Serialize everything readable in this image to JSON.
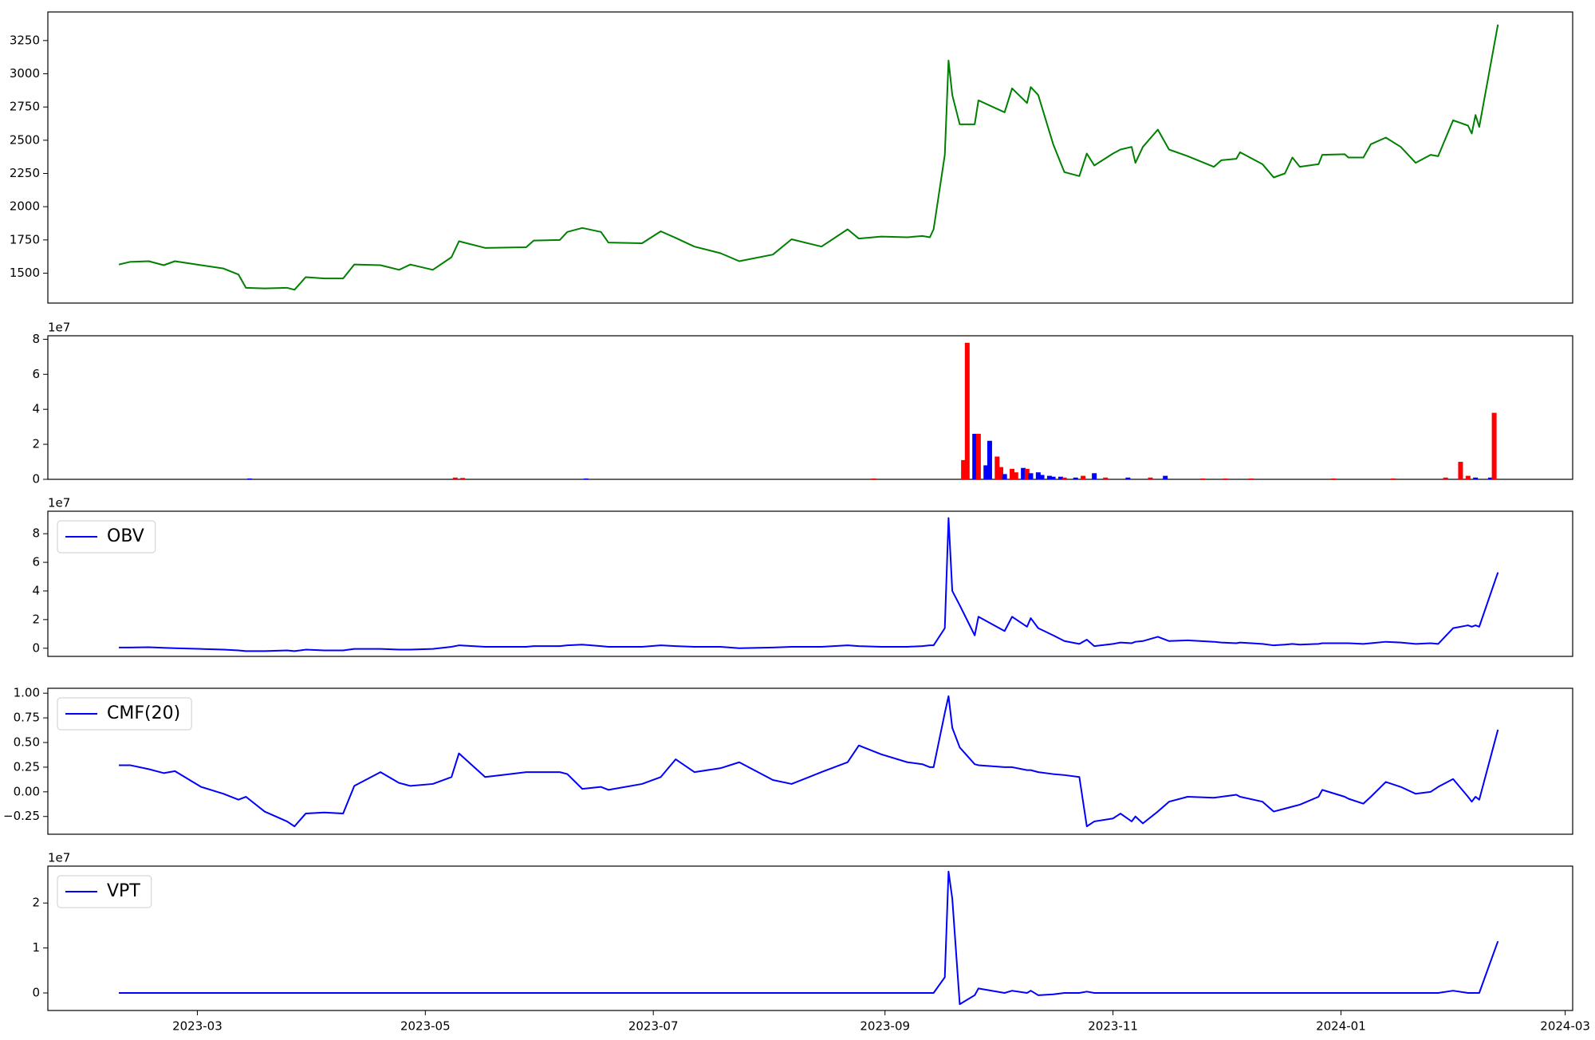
{
  "chart_data": [
    {
      "type": "line",
      "color": "green",
      "x": [
        "2023-02-08",
        "2023-02-11",
        "2023-02-16",
        "2023-02-20",
        "2023-02-23",
        "2023-03-02",
        "2023-03-08",
        "2023-03-12",
        "2023-03-14",
        "2023-03-19",
        "2023-03-25",
        "2023-03-27",
        "2023-03-30",
        "2023-04-04",
        "2023-04-09",
        "2023-04-12",
        "2023-04-19",
        "2023-04-24",
        "2023-04-27",
        "2023-05-03",
        "2023-05-08",
        "2023-05-10",
        "2023-05-17",
        "2023-05-28",
        "2023-05-30",
        "2023-06-06",
        "2023-06-08",
        "2023-06-12",
        "2023-06-17",
        "2023-06-19",
        "2023-06-28",
        "2023-07-03",
        "2023-07-07",
        "2023-07-12",
        "2023-07-19",
        "2023-07-24",
        "2023-08-02",
        "2023-08-07",
        "2023-08-15",
        "2023-08-22",
        "2023-08-25",
        "2023-08-31",
        "2023-09-07",
        "2023-09-11",
        "2023-09-13",
        "2023-09-14",
        "2023-09-17",
        "2023-09-18",
        "2023-09-19",
        "2023-09-21",
        "2023-09-25",
        "2023-09-26",
        "2023-10-03",
        "2023-10-05",
        "2023-10-09",
        "2023-10-10",
        "2023-10-12",
        "2023-10-16",
        "2023-10-19",
        "2023-10-23",
        "2023-10-25",
        "2023-10-27",
        "2023-11-01",
        "2023-11-03",
        "2023-11-06",
        "2023-11-07",
        "2023-11-09",
        "2023-11-13",
        "2023-11-16",
        "2023-11-21",
        "2023-11-28",
        "2023-11-30",
        "2023-12-04",
        "2023-12-05",
        "2023-12-11",
        "2023-12-14",
        "2023-12-17",
        "2023-12-19",
        "2023-12-21",
        "2023-12-26",
        "2023-12-27",
        "2024-01-02",
        "2024-01-03",
        "2024-01-07",
        "2024-01-09",
        "2024-01-13",
        "2024-01-17",
        "2024-01-21",
        "2024-01-25",
        "2024-01-27",
        "2024-01-31",
        "2024-02-04",
        "2024-02-05",
        "2024-02-06",
        "2024-02-07",
        "2024-02-12"
      ],
      "values": [
        1565,
        1585,
        1590,
        1560,
        1590,
        1560,
        1535,
        1490,
        1390,
        1385,
        1390,
        1375,
        1470,
        1460,
        1460,
        1565,
        1560,
        1525,
        1565,
        1525,
        1620,
        1740,
        1690,
        1695,
        1745,
        1750,
        1810,
        1840,
        1810,
        1730,
        1725,
        1815,
        1765,
        1700,
        1650,
        1590,
        1640,
        1755,
        1700,
        1830,
        1760,
        1775,
        1770,
        1780,
        1770,
        1830,
        2390,
        3100,
        2840,
        2620,
        2620,
        2800,
        2710,
        2890,
        2780,
        2900,
        2840,
        2470,
        2260,
        2230,
        2400,
        2310,
        2400,
        2430,
        2450,
        2330,
        2450,
        2580,
        2430,
        2380,
        2300,
        2350,
        2360,
        2410,
        2320,
        2220,
        2250,
        2370,
        2300,
        2320,
        2390,
        2395,
        2370,
        2370,
        2470,
        2520,
        2450,
        2330,
        2390,
        2380,
        2650,
        2610,
        2550,
        2690,
        2600,
        3370
      ],
      "xlim": [
        "2023-01-20",
        "2024-03-03"
      ],
      "ylim": [
        1275,
        3465
      ],
      "yticks": [
        1500,
        1750,
        2000,
        2250,
        2500,
        2750,
        3000,
        3250
      ]
    },
    {
      "type": "bar",
      "offset_label": "1e7",
      "x": [
        "2023-03-15",
        "2023-05-09",
        "2023-05-11",
        "2023-06-13",
        "2023-08-29",
        "2023-09-22",
        "2023-09-23",
        "2023-09-25",
        "2023-09-26",
        "2023-09-28",
        "2023-09-29",
        "2023-10-01",
        "2023-10-02",
        "2023-10-03",
        "2023-10-05",
        "2023-10-06",
        "2023-10-08",
        "2023-10-09",
        "2023-10-10",
        "2023-10-12",
        "2023-10-13",
        "2023-10-15",
        "2023-10-16",
        "2023-10-18",
        "2023-10-19",
        "2023-10-22",
        "2023-10-24",
        "2023-10-27",
        "2023-10-30",
        "2023-11-05",
        "2023-11-11",
        "2023-11-15",
        "2023-11-25",
        "2023-12-01",
        "2023-12-08",
        "2023-12-30",
        "2024-01-15",
        "2024-01-29",
        "2024-02-02",
        "2024-02-04",
        "2024-02-06",
        "2024-02-10",
        "2024-02-11"
      ],
      "values": [
        0.05,
        0.1,
        0.08,
        0.05,
        0.05,
        1.1,
        7.8,
        2.6,
        2.6,
        0.8,
        2.2,
        1.3,
        0.7,
        0.3,
        0.6,
        0.4,
        0.65,
        0.6,
        0.35,
        0.4,
        0.25,
        0.2,
        0.15,
        0.15,
        0.1,
        0.1,
        0.2,
        0.35,
        0.1,
        0.1,
        0.1,
        0.2,
        0.05,
        0.05,
        0.05,
        0.05,
        0.05,
        0.1,
        1.0,
        0.2,
        0.1,
        0.1,
        3.8
      ],
      "colors": [
        "blue",
        "red",
        "red",
        "blue",
        "red",
        "red",
        "red",
        "blue",
        "red",
        "blue",
        "blue",
        "red",
        "red",
        "blue",
        "red",
        "red",
        "blue",
        "red",
        "blue",
        "blue",
        "blue",
        "blue",
        "blue",
        "blue",
        "red",
        "blue",
        "red",
        "blue",
        "red",
        "blue",
        "red",
        "blue",
        "red",
        "red",
        "red",
        "red",
        "red",
        "red",
        "red",
        "red",
        "blue",
        "blue",
        "red"
      ],
      "xlim": [
        "2023-01-20",
        "2024-03-03"
      ],
      "ylim": [
        0,
        8.2
      ],
      "yticks": [
        0,
        2,
        4,
        6,
        8
      ]
    },
    {
      "type": "line",
      "offset_label": "1e7",
      "legend": "upper left",
      "x": [
        "2023-02-08",
        "2023-02-11",
        "2023-02-16",
        "2023-02-20",
        "2023-02-23",
        "2023-03-02",
        "2023-03-08",
        "2023-03-12",
        "2023-03-14",
        "2023-03-19",
        "2023-03-25",
        "2023-03-27",
        "2023-03-30",
        "2023-04-04",
        "2023-04-09",
        "2023-04-12",
        "2023-04-19",
        "2023-04-24",
        "2023-04-27",
        "2023-05-03",
        "2023-05-08",
        "2023-05-10",
        "2023-05-17",
        "2023-05-28",
        "2023-05-30",
        "2023-06-06",
        "2023-06-08",
        "2023-06-12",
        "2023-06-17",
        "2023-06-19",
        "2023-06-28",
        "2023-07-03",
        "2023-07-07",
        "2023-07-12",
        "2023-07-19",
        "2023-07-24",
        "2023-08-02",
        "2023-08-07",
        "2023-08-15",
        "2023-08-22",
        "2023-08-25",
        "2023-08-31",
        "2023-09-07",
        "2023-09-11",
        "2023-09-13",
        "2023-09-14",
        "2023-09-17",
        "2023-09-18",
        "2023-09-19",
        "2023-09-21",
        "2023-09-25",
        "2023-09-26",
        "2023-10-03",
        "2023-10-05",
        "2023-10-09",
        "2023-10-10",
        "2023-10-12",
        "2023-10-16",
        "2023-10-19",
        "2023-10-23",
        "2023-10-25",
        "2023-10-27",
        "2023-11-01",
        "2023-11-03",
        "2023-11-06",
        "2023-11-07",
        "2023-11-09",
        "2023-11-13",
        "2023-11-16",
        "2023-11-21",
        "2023-11-28",
        "2023-11-30",
        "2023-12-04",
        "2023-12-05",
        "2023-12-11",
        "2023-12-14",
        "2023-12-17",
        "2023-12-19",
        "2023-12-21",
        "2023-12-26",
        "2023-12-27",
        "2024-01-02",
        "2024-01-03",
        "2024-01-07",
        "2024-01-09",
        "2024-01-13",
        "2024-01-17",
        "2024-01-21",
        "2024-01-25",
        "2024-01-27",
        "2024-01-31",
        "2024-02-04",
        "2024-02-05",
        "2024-02-06",
        "2024-02-07",
        "2024-02-12"
      ],
      "series": [
        {
          "name": "OBV",
          "color": "blue",
          "values": [
            0.05,
            0.05,
            0.07,
            0.03,
            0.0,
            -0.05,
            -0.1,
            -0.15,
            -0.2,
            -0.2,
            -0.15,
            -0.2,
            -0.1,
            -0.15,
            -0.15,
            -0.05,
            -0.05,
            -0.1,
            -0.1,
            -0.05,
            0.1,
            0.2,
            0.1,
            0.1,
            0.15,
            0.15,
            0.2,
            0.25,
            0.15,
            0.1,
            0.1,
            0.2,
            0.15,
            0.1,
            0.1,
            0.0,
            0.05,
            0.1,
            0.1,
            0.2,
            0.15,
            0.1,
            0.1,
            0.15,
            0.2,
            0.2,
            1.4,
            9.1,
            4.0,
            3.0,
            0.9,
            2.2,
            1.2,
            2.2,
            1.5,
            2.1,
            1.4,
            0.9,
            0.5,
            0.3,
            0.6,
            0.15,
            0.3,
            0.4,
            0.35,
            0.45,
            0.5,
            0.8,
            0.5,
            0.55,
            0.45,
            0.4,
            0.35,
            0.4,
            0.3,
            0.2,
            0.25,
            0.3,
            0.25,
            0.3,
            0.35,
            0.35,
            0.35,
            0.3,
            0.35,
            0.45,
            0.4,
            0.3,
            0.35,
            0.3,
            1.4,
            1.6,
            1.5,
            1.6,
            1.5,
            5.3
          ]
        }
      ],
      "xlim": [
        "2023-01-20",
        "2024-03-03"
      ],
      "ylim": [
        -0.57,
        9.57
      ],
      "yticks": [
        0,
        2,
        4,
        6,
        8
      ]
    },
    {
      "type": "line",
      "legend": "upper left",
      "x": [
        "2023-02-08",
        "2023-02-11",
        "2023-02-16",
        "2023-02-20",
        "2023-02-23",
        "2023-03-02",
        "2023-03-08",
        "2023-03-12",
        "2023-03-14",
        "2023-03-19",
        "2023-03-25",
        "2023-03-27",
        "2023-03-30",
        "2023-04-04",
        "2023-04-09",
        "2023-04-12",
        "2023-04-19",
        "2023-04-24",
        "2023-04-27",
        "2023-05-03",
        "2023-05-08",
        "2023-05-10",
        "2023-05-17",
        "2023-05-28",
        "2023-05-30",
        "2023-06-06",
        "2023-06-08",
        "2023-06-12",
        "2023-06-17",
        "2023-06-19",
        "2023-06-28",
        "2023-07-03",
        "2023-07-07",
        "2023-07-12",
        "2023-07-19",
        "2023-07-24",
        "2023-08-02",
        "2023-08-07",
        "2023-08-15",
        "2023-08-22",
        "2023-08-25",
        "2023-08-31",
        "2023-09-07",
        "2023-09-11",
        "2023-09-13",
        "2023-09-14",
        "2023-09-17",
        "2023-09-18",
        "2023-09-19",
        "2023-09-21",
        "2023-09-25",
        "2023-09-26",
        "2023-10-03",
        "2023-10-05",
        "2023-10-09",
        "2023-10-10",
        "2023-10-12",
        "2023-10-16",
        "2023-10-19",
        "2023-10-23",
        "2023-10-25",
        "2023-10-27",
        "2023-11-01",
        "2023-11-03",
        "2023-11-06",
        "2023-11-07",
        "2023-11-09",
        "2023-11-13",
        "2023-11-16",
        "2023-11-21",
        "2023-11-28",
        "2023-11-30",
        "2023-12-04",
        "2023-12-05",
        "2023-12-11",
        "2023-12-14",
        "2023-12-17",
        "2023-12-19",
        "2023-12-21",
        "2023-12-26",
        "2023-12-27",
        "2024-01-02",
        "2024-01-03",
        "2024-01-07",
        "2024-01-09",
        "2024-01-13",
        "2024-01-17",
        "2024-01-21",
        "2024-01-25",
        "2024-01-27",
        "2024-01-31",
        "2024-02-04",
        "2024-02-05",
        "2024-02-06",
        "2024-02-07",
        "2024-02-12"
      ],
      "series": [
        {
          "name": "CMF(20)",
          "color": "blue",
          "values": [
            0.27,
            0.27,
            0.23,
            0.19,
            0.21,
            0.05,
            -0.02,
            -0.08,
            -0.05,
            -0.2,
            -0.3,
            -0.35,
            -0.22,
            -0.21,
            -0.22,
            0.06,
            0.2,
            0.09,
            0.06,
            0.08,
            0.15,
            0.39,
            0.15,
            0.2,
            0.2,
            0.2,
            0.18,
            0.03,
            0.05,
            0.02,
            0.08,
            0.15,
            0.33,
            0.2,
            0.24,
            0.3,
            0.12,
            0.08,
            0.2,
            0.3,
            0.47,
            0.38,
            0.3,
            0.28,
            0.25,
            0.25,
            0.8,
            0.97,
            0.65,
            0.45,
            0.28,
            0.27,
            0.25,
            0.25,
            0.22,
            0.22,
            0.2,
            0.18,
            0.17,
            0.15,
            -0.35,
            -0.3,
            -0.27,
            -0.22,
            -0.3,
            -0.25,
            -0.32,
            -0.2,
            -0.1,
            -0.05,
            -0.06,
            -0.05,
            -0.03,
            -0.05,
            -0.1,
            -0.2,
            -0.17,
            -0.15,
            -0.13,
            -0.05,
            0.02,
            -0.05,
            -0.07,
            -0.12,
            -0.05,
            0.1,
            0.05,
            -0.02,
            0.0,
            0.05,
            0.13,
            -0.05,
            -0.1,
            -0.05,
            -0.08,
            0.63
          ]
        }
      ],
      "xlim": [
        "2023-01-20",
        "2024-03-03"
      ],
      "ylim": [
        -0.43,
        1.05
      ],
      "yticks": [
        {
          "value": -0.25,
          "label": "−0.25"
        },
        {
          "value": 0,
          "label": "0.00"
        },
        {
          "value": 0.25,
          "label": "0.25"
        },
        {
          "value": 0.5,
          "label": "0.50"
        },
        {
          "value": 0.75,
          "label": "0.75"
        },
        {
          "value": 1,
          "label": "1.00"
        }
      ]
    },
    {
      "type": "line",
      "offset_label": "1e7",
      "legend": "upper left",
      "x": [
        "2023-02-08",
        "2023-02-11",
        "2023-02-16",
        "2023-02-20",
        "2023-02-23",
        "2023-03-02",
        "2023-03-08",
        "2023-03-12",
        "2023-03-14",
        "2023-03-19",
        "2023-03-25",
        "2023-03-27",
        "2023-03-30",
        "2023-04-04",
        "2023-04-09",
        "2023-04-12",
        "2023-04-19",
        "2023-04-24",
        "2023-04-27",
        "2023-05-03",
        "2023-05-08",
        "2023-05-10",
        "2023-05-17",
        "2023-05-28",
        "2023-05-30",
        "2023-06-06",
        "2023-06-08",
        "2023-06-12",
        "2023-06-17",
        "2023-06-19",
        "2023-06-28",
        "2023-07-03",
        "2023-07-07",
        "2023-07-12",
        "2023-07-19",
        "2023-07-24",
        "2023-08-02",
        "2023-08-07",
        "2023-08-15",
        "2023-08-22",
        "2023-08-25",
        "2023-08-31",
        "2023-09-07",
        "2023-09-11",
        "2023-09-13",
        "2023-09-14",
        "2023-09-17",
        "2023-09-18",
        "2023-09-19",
        "2023-09-21",
        "2023-09-25",
        "2023-09-26",
        "2023-10-03",
        "2023-10-05",
        "2023-10-09",
        "2023-10-10",
        "2023-10-12",
        "2023-10-16",
        "2023-10-19",
        "2023-10-23",
        "2023-10-25",
        "2023-10-27",
        "2023-11-01",
        "2023-11-03",
        "2023-11-06",
        "2023-11-07",
        "2023-11-09",
        "2023-11-13",
        "2023-11-16",
        "2023-11-21",
        "2023-11-28",
        "2023-11-30",
        "2023-12-04",
        "2023-12-05",
        "2023-12-11",
        "2023-12-14",
        "2023-12-17",
        "2023-12-19",
        "2023-12-21",
        "2023-12-26",
        "2023-12-27",
        "2024-01-02",
        "2024-01-03",
        "2024-01-07",
        "2024-01-09",
        "2024-01-13",
        "2024-01-17",
        "2024-01-21",
        "2024-01-25",
        "2024-01-27",
        "2024-01-31",
        "2024-02-04",
        "2024-02-05",
        "2024-02-06",
        "2024-02-07",
        "2024-02-12"
      ],
      "series": [
        {
          "name": "VPT",
          "color": "blue",
          "values": [
            0,
            0,
            0,
            0,
            0,
            0,
            0,
            0,
            0,
            0,
            0,
            0,
            0,
            0,
            0,
            0,
            0,
            0,
            0,
            0,
            0,
            0,
            0,
            0,
            0,
            0,
            0,
            0,
            0,
            0,
            0,
            0,
            0,
            0,
            0,
            0,
            0,
            0,
            0,
            0,
            0,
            0,
            0,
            0,
            0,
            0,
            0.35,
            2.7,
            2.1,
            -0.25,
            -0.05,
            0.1,
            0.0,
            0.05,
            0.0,
            0.05,
            -0.05,
            -0.03,
            0.0,
            0.0,
            0.03,
            0.0,
            0,
            0,
            0,
            0,
            0,
            0,
            0,
            0,
            0,
            0,
            0,
            0,
            0,
            0,
            0,
            0,
            0,
            0,
            0,
            0,
            0,
            0,
            0,
            0,
            0,
            0,
            0,
            0,
            0.05,
            0.0,
            0.0,
            0.0,
            0.0,
            1.15
          ]
        }
      ],
      "xlim": [
        "2023-01-20",
        "2024-03-03"
      ],
      "ylim": [
        -0.39,
        2.82
      ],
      "yticks": [
        0,
        1,
        2
      ],
      "xticks": [
        {
          "value": "2023-03-01",
          "label": "2023-03"
        },
        {
          "value": "2023-05-01",
          "label": "2023-05"
        },
        {
          "value": "2023-07-01",
          "label": "2023-07"
        },
        {
          "value": "2023-09-01",
          "label": "2023-09"
        },
        {
          "value": "2023-11-01",
          "label": "2023-11"
        },
        {
          "value": "2024-01-01",
          "label": "2024-01"
        },
        {
          "value": "2024-03-01",
          "label": "2024-03"
        }
      ]
    }
  ]
}
